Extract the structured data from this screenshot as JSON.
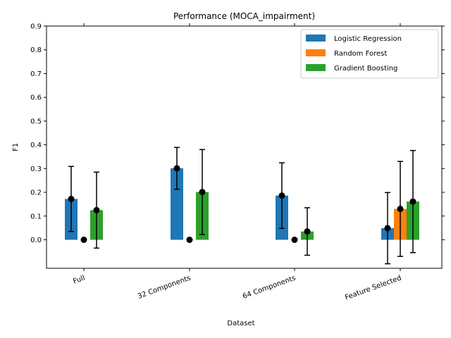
{
  "chart_data": {
    "type": "bar",
    "title": "Performance (MOCA_impairment)",
    "xlabel": "Dataset",
    "ylabel": "F1",
    "ylim": [
      -0.12,
      0.9
    ],
    "yticks": [
      "0.0",
      "0.1",
      "0.2",
      "0.3",
      "0.4",
      "0.5",
      "0.6",
      "0.7",
      "0.8",
      "0.9"
    ],
    "categories": [
      "Full",
      "32 Components",
      "64 Components",
      "Feature Selected"
    ],
    "legend_position": "top-right",
    "grid": false,
    "series": [
      {
        "name": "Logistic Regression",
        "color": "#1f77b4",
        "values": [
          0.172,
          0.301,
          0.186,
          0.049
        ],
        "errors": [
          0.137,
          0.088,
          0.138,
          0.15
        ]
      },
      {
        "name": "Random Forest",
        "color": "#ff7f0e",
        "values": [
          0.0,
          0.0,
          0.0,
          0.13
        ],
        "errors": [
          0.0,
          0.0,
          0.0,
          0.2
        ]
      },
      {
        "name": "Gradient Boosting",
        "color": "#2ca02c",
        "values": [
          0.125,
          0.201,
          0.035,
          0.161
        ],
        "errors": [
          0.16,
          0.179,
          0.1,
          0.215
        ]
      }
    ]
  }
}
